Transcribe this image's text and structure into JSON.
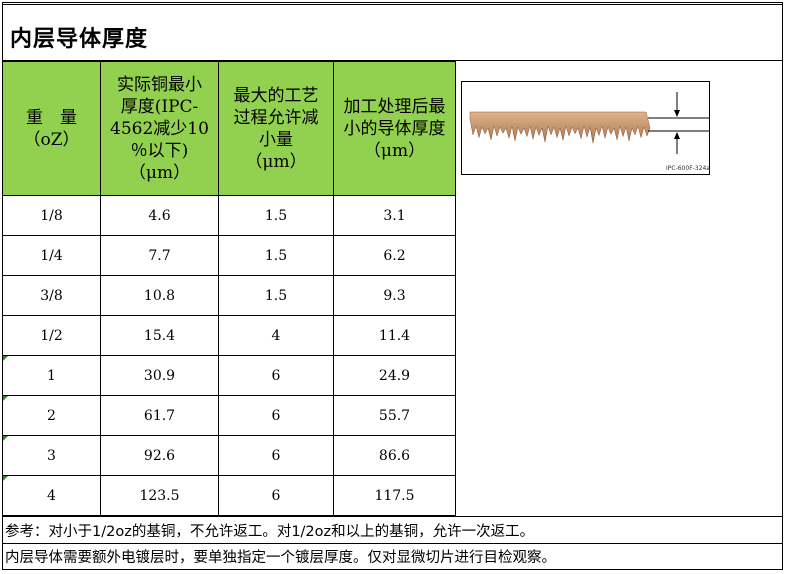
{
  "title": "内层导体厚度",
  "table": {
    "headers": [
      [
        "重　量",
        "（oZ）"
      ],
      [
        "实际铜最小",
        "厚度(IPC-",
        "4562减少10",
        "％以下)",
        "（μm）"
      ],
      [
        "最大的工艺",
        "过程允许减",
        "小量",
        "（μm）"
      ],
      [
        "加工处理后最",
        "小的导体厚度",
        "（μm）"
      ]
    ],
    "rows": [
      [
        "1/8",
        "4.6",
        "1.5",
        "3.1"
      ],
      [
        "1/4",
        "7.7",
        "1.5",
        "6.2"
      ],
      [
        "3/8",
        "10.8",
        "1.5",
        "9.3"
      ],
      [
        "1/2",
        "15.4",
        "4",
        "11.4"
      ],
      [
        "1",
        "30.9",
        "6",
        "24.9"
      ],
      [
        "2",
        "61.7",
        "6",
        "55.7"
      ],
      [
        "3",
        "92.6",
        "6",
        "86.6"
      ],
      [
        "4",
        "123.5",
        "6",
        "117.5"
      ]
    ]
  },
  "figure": {
    "label": "IPC-600F-324a",
    "copper_color": "#c99a72"
  },
  "notes": [
    "参考：对小于1/2oz的基铜，不允许返工。对1/2oz和以上的基铜，允许一次返工。",
    "内层导体需要额外电镀层时，要单独指定一个镀层厚度。仅对显微切片进行目检观察。"
  ]
}
